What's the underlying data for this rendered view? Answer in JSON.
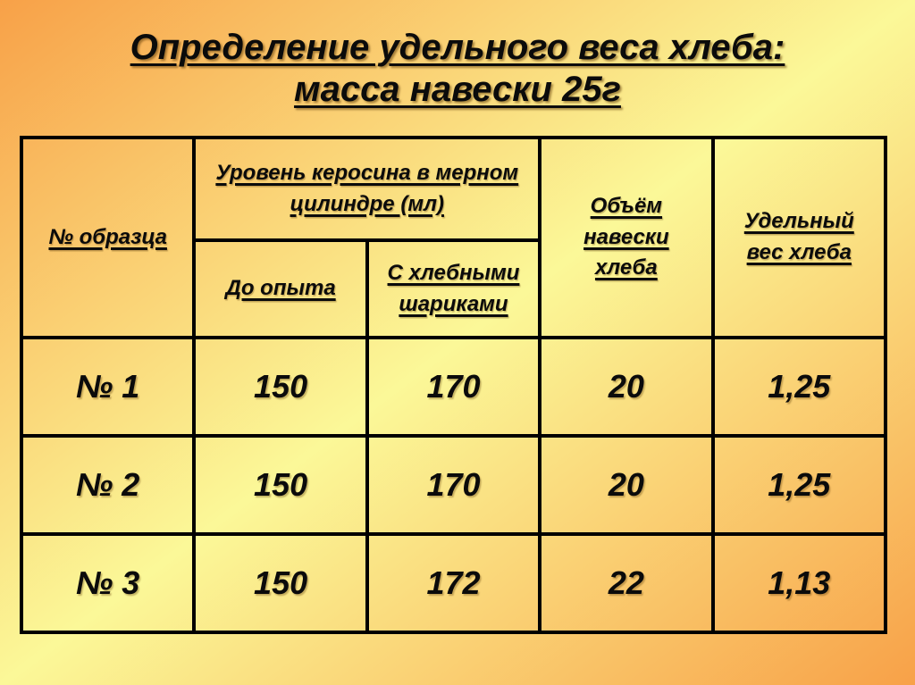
{
  "title": {
    "line1": "Определение удельного веса хлеба:",
    "line2": "масса навески 25г"
  },
  "table": {
    "header": {
      "sample": "№ образца",
      "kerosene": [
        "Уровень керосина в мерном",
        "цилиндре (мл)"
      ],
      "before": [
        "До опыта"
      ],
      "with_balls": [
        "С хлебными",
        "шариками"
      ],
      "volume": [
        "Объём",
        "навески",
        "хлеба"
      ],
      "weight": [
        "Удельный",
        "вес хлеба"
      ]
    },
    "rows": [
      [
        "№ 1",
        "150",
        "170",
        "20",
        "1,25"
      ],
      [
        "№ 2",
        "150",
        "170",
        "20",
        "1,25"
      ],
      [
        "№ 3",
        "150",
        "172",
        "22",
        "1,13"
      ]
    ]
  },
  "colors": {
    "background_corner": "#F8A148",
    "background_middle": "#FBF898",
    "table_border": "#000000",
    "text": "#0b0b0b"
  }
}
